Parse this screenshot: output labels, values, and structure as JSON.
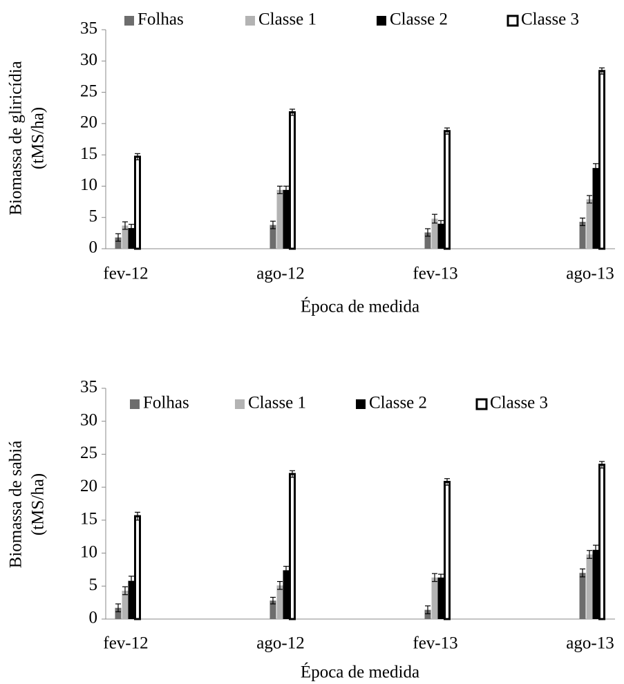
{
  "chart_data": [
    {
      "type": "bar",
      "ylabel": [
        "Biomassa de gliricídia",
        "(tMS/ha)"
      ],
      "xlabel": "Época de medida",
      "categories": [
        "fev-12",
        "ago-12",
        "fev-13",
        "ago-13"
      ],
      "ylim": [
        0,
        35
      ],
      "yticks": [
        0,
        5,
        10,
        15,
        20,
        25,
        30,
        35
      ],
      "legend": "top",
      "series": [
        {
          "name": "Folhas",
          "color": "#6d6d6d",
          "values": [
            1.8,
            3.8,
            2.6,
            4.3
          ],
          "errors": [
            0.6,
            0.6,
            0.6,
            0.6
          ]
        },
        {
          "name": "Classe 1",
          "color": "#b3b3b3",
          "values": [
            3.7,
            9.4,
            4.8,
            7.9
          ],
          "errors": [
            0.6,
            0.6,
            0.7,
            0.6
          ]
        },
        {
          "name": "Classe 2",
          "color": "#000000",
          "values": [
            3.3,
            9.4,
            4.0,
            12.9
          ],
          "errors": [
            0.6,
            0.6,
            0.5,
            0.7
          ]
        },
        {
          "name": "Classe 3",
          "color": "#ffffff",
          "values": [
            14.7,
            21.8,
            18.8,
            28.4
          ],
          "errors": [
            0.5,
            0.5,
            0.5,
            0.5
          ]
        }
      ]
    },
    {
      "type": "bar",
      "ylabel": [
        "Biomassa de sabiá",
        "(tMS/ha)"
      ],
      "xlabel": "Época de medida",
      "categories": [
        "fev-12",
        "ago-12",
        "fev-13",
        "ago-13"
      ],
      "ylim": [
        0,
        35
      ],
      "yticks": [
        0,
        5,
        10,
        15,
        20,
        25,
        30,
        35
      ],
      "legend": "top",
      "series": [
        {
          "name": "Folhas",
          "color": "#6d6d6d",
          "values": [
            1.7,
            2.8,
            1.4,
            7.0
          ],
          "errors": [
            0.6,
            0.5,
            0.6,
            0.6
          ]
        },
        {
          "name": "Classe 1",
          "color": "#b3b3b3",
          "values": [
            4.3,
            5.1,
            6.3,
            9.8
          ],
          "errors": [
            0.6,
            0.6,
            0.6,
            0.6
          ]
        },
        {
          "name": "Classe 2",
          "color": "#000000",
          "values": [
            5.8,
            7.4,
            6.3,
            10.5
          ],
          "errors": [
            0.7,
            0.6,
            0.5,
            0.7
          ]
        },
        {
          "name": "Classe 3",
          "color": "#ffffff",
          "values": [
            15.6,
            22.0,
            20.8,
            23.4
          ],
          "errors": [
            0.6,
            0.5,
            0.5,
            0.5
          ]
        }
      ]
    }
  ]
}
